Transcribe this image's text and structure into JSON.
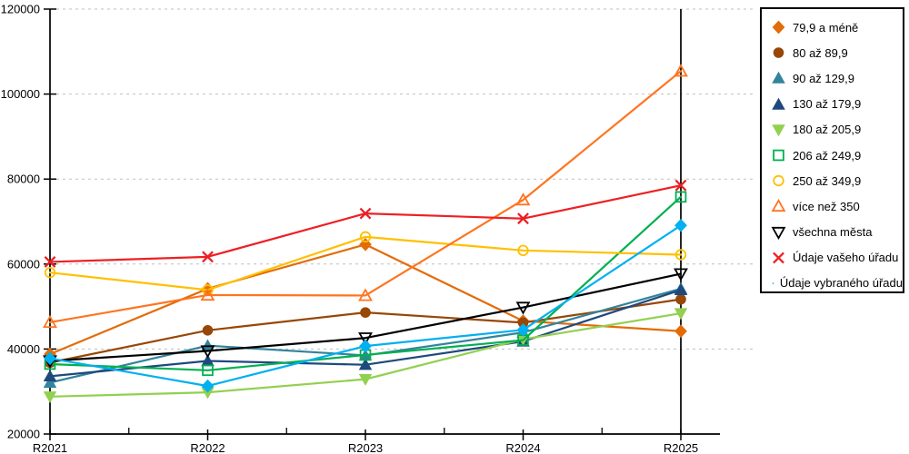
{
  "chart_data": {
    "type": "line",
    "title": "",
    "xlabel": "",
    "ylabel": "",
    "x_categories": [
      "R2021",
      "R2022",
      "R2023",
      "R2024",
      "R2025"
    ],
    "ylim": [
      20000,
      120000
    ],
    "y_ticks": [
      20000,
      40000,
      60000,
      80000,
      100000,
      120000
    ],
    "grid": "horizontal-dashed",
    "legend_position": "right",
    "series": [
      {
        "name": "79,9 a méně",
        "color": "#E36C09",
        "marker": "diamond",
        "style": "solid",
        "values": [
          38800,
          54200,
          64600,
          46600,
          44200
        ]
      },
      {
        "name": "80 až 89,9",
        "color": "#974706",
        "marker": "circle",
        "style": "solid",
        "values": [
          36800,
          44400,
          48600,
          46200,
          51700
        ]
      },
      {
        "name": "90 až 129,9",
        "color": "#31849B",
        "marker": "triangle-up",
        "style": "solid",
        "values": [
          32100,
          40800,
          38500,
          43900,
          54200
        ]
      },
      {
        "name": "130 až 179,9",
        "color": "#1F497D",
        "marker": "triangle-up",
        "style": "solid",
        "values": [
          33600,
          37200,
          36300,
          41800,
          53900
        ]
      },
      {
        "name": "180 až 205,9",
        "color": "#92D050",
        "marker": "triangle-down",
        "style": "solid",
        "values": [
          28800,
          29800,
          32900,
          42300,
          48400
        ]
      },
      {
        "name": "206 až 249,9",
        "color": "#00B050",
        "marker": "square",
        "style": "open",
        "values": [
          36450,
          35000,
          38600,
          42100,
          75800
        ]
      },
      {
        "name": "250 až 349,9",
        "color": "#FFC000",
        "marker": "circle",
        "style": "open",
        "values": [
          58000,
          53900,
          66400,
          63200,
          62200
        ]
      },
      {
        "name": "více než 350",
        "color": "#FF7420",
        "marker": "triangle-up",
        "style": "open",
        "values": [
          46300,
          52700,
          52600,
          75100,
          105400
        ]
      },
      {
        "name": "všechna města",
        "color": "#000000",
        "marker": "triangle-down",
        "style": "open",
        "values": [
          37200,
          39550,
          42600,
          49800,
          57700
        ]
      },
      {
        "name": "Údaje vašeho úřadu",
        "color": "#ED2024",
        "marker": "x",
        "style": "line",
        "values": [
          60500,
          61700,
          71900,
          70700,
          78500
        ]
      },
      {
        "name": "Údaje vybraného úřadu",
        "color": "#00B0F0",
        "marker": "diamond",
        "style": "solid",
        "values": [
          37800,
          31300,
          40700,
          44500,
          69100
        ]
      }
    ],
    "axis_color": "#000000",
    "gridline_color": "#BFBFBF",
    "background": "#FFFFFF"
  }
}
